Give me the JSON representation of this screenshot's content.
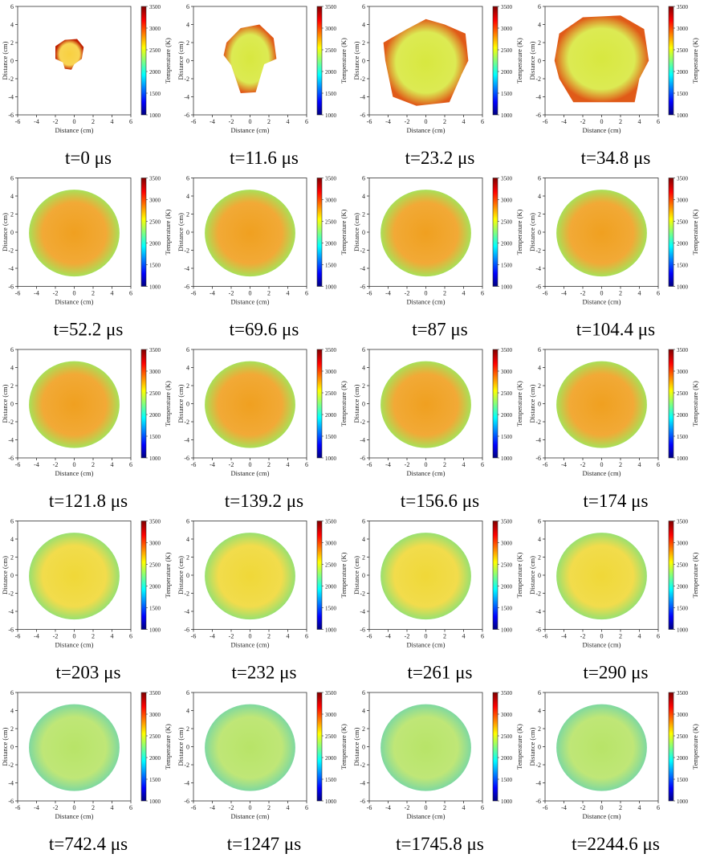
{
  "chart_data": [
    {
      "type": "heatmap",
      "caption": "t=0 μs",
      "xlabel": "Distance (cm)",
      "ylabel": "Distance (cm)",
      "colorbar_label": "Temperature (K)",
      "xlim": [
        -6,
        6
      ],
      "ylim": [
        -6,
        6
      ],
      "xticks": [
        -6,
        -4,
        -2,
        0,
        2,
        4,
        6
      ],
      "yticks": [
        -6,
        -4,
        -2,
        0,
        2,
        4,
        6
      ],
      "clim": [
        1000,
        3500
      ],
      "cticks": [
        1000,
        1500,
        2000,
        2500,
        3000,
        3500
      ]
    },
    {
      "type": "heatmap",
      "caption": "t=11.6 μs",
      "xlabel": "Distance (cm)",
      "ylabel": "Distance (cm)",
      "colorbar_label": "Temperature (K)",
      "xlim": [
        -6,
        6
      ],
      "ylim": [
        -6,
        6
      ],
      "xticks": [
        -6,
        -4,
        -2,
        0,
        2,
        4,
        6
      ],
      "yticks": [
        -6,
        -4,
        -2,
        0,
        2,
        4,
        6
      ],
      "clim": [
        1000,
        3500
      ],
      "cticks": [
        1000,
        1500,
        2000,
        2500,
        3000,
        3500
      ]
    },
    {
      "type": "heatmap",
      "caption": "t=23.2 μs",
      "xlabel": "Distance (cm)",
      "ylabel": "Distance (cm)",
      "colorbar_label": "Temperature (K)",
      "xlim": [
        -6,
        6
      ],
      "ylim": [
        -6,
        6
      ],
      "xticks": [
        -6,
        -4,
        -2,
        0,
        2,
        4,
        6
      ],
      "yticks": [
        -6,
        -4,
        -2,
        0,
        2,
        4,
        6
      ],
      "clim": [
        1000,
        3500
      ],
      "cticks": [
        1000,
        1500,
        2000,
        2500,
        3000,
        3500
      ]
    },
    {
      "type": "heatmap",
      "caption": "t=34.8 μs",
      "xlabel": "Distance (cm)",
      "ylabel": "Distance (cm)",
      "colorbar_label": "Temperature (K)",
      "xlim": [
        -6,
        6
      ],
      "ylim": [
        -6,
        6
      ],
      "xticks": [
        -6,
        -4,
        -2,
        0,
        2,
        4,
        6
      ],
      "yticks": [
        -6,
        -4,
        -2,
        0,
        2,
        4,
        6
      ],
      "clim": [
        1000,
        3500
      ],
      "cticks": [
        1000,
        1500,
        2000,
        2500,
        3000,
        3500
      ]
    },
    {
      "type": "heatmap",
      "caption": "t=52.2 μs",
      "xlabel": "Distance (cm)",
      "ylabel": "Distance (cm)",
      "colorbar_label": "Temperature (K)",
      "xlim": [
        -6,
        6
      ],
      "ylim": [
        -6,
        6
      ],
      "xticks": [
        -6,
        -4,
        -2,
        0,
        2,
        4,
        6
      ],
      "yticks": [
        -6,
        -4,
        -2,
        0,
        2,
        4,
        6
      ],
      "clim": [
        1000,
        3500
      ],
      "cticks": [
        1000,
        1500,
        2000,
        2500,
        3000,
        3500
      ]
    },
    {
      "type": "heatmap",
      "caption": "t=69.6 μs",
      "xlabel": "Distance (cm)",
      "ylabel": "Distance (cm)",
      "colorbar_label": "Temperature (K)",
      "xlim": [
        -6,
        6
      ],
      "ylim": [
        -6,
        6
      ],
      "xticks": [
        -6,
        -4,
        -2,
        0,
        2,
        4,
        6
      ],
      "yticks": [
        -6,
        -4,
        -2,
        0,
        2,
        4,
        6
      ],
      "clim": [
        1000,
        3500
      ],
      "cticks": [
        1000,
        1500,
        2000,
        2500,
        3000,
        3500
      ]
    },
    {
      "type": "heatmap",
      "caption": "t=87 μs",
      "xlabel": "Distance (cm)",
      "ylabel": "Distance (cm)",
      "colorbar_label": "Temperature (K)",
      "xlim": [
        -6,
        6
      ],
      "ylim": [
        -6,
        6
      ],
      "xticks": [
        -6,
        -4,
        -2,
        0,
        2,
        4,
        6
      ],
      "yticks": [
        -6,
        -4,
        -2,
        0,
        2,
        4,
        6
      ],
      "clim": [
        1000,
        3500
      ],
      "cticks": [
        1000,
        1500,
        2000,
        2500,
        3000,
        3500
      ]
    },
    {
      "type": "heatmap",
      "caption": "t=104.4 μs",
      "xlabel": "Distance (cm)",
      "ylabel": "Distance (cm)",
      "colorbar_label": "Temperature (K)",
      "xlim": [
        -6,
        6
      ],
      "ylim": [
        -6,
        6
      ],
      "xticks": [
        -6,
        -4,
        -2,
        0,
        2,
        4,
        6
      ],
      "yticks": [
        -6,
        -4,
        -2,
        0,
        2,
        4,
        6
      ],
      "clim": [
        1000,
        3500
      ],
      "cticks": [
        1000,
        1500,
        2000,
        2500,
        3000,
        3500
      ]
    },
    {
      "type": "heatmap",
      "caption": "t=121.8 μs",
      "xlabel": "Distance (cm)",
      "ylabel": "Distance (cm)",
      "colorbar_label": "Temperature (K)",
      "xlim": [
        -6,
        6
      ],
      "ylim": [
        -6,
        6
      ],
      "xticks": [
        -6,
        -4,
        -2,
        0,
        2,
        4,
        6
      ],
      "yticks": [
        -6,
        -4,
        -2,
        0,
        2,
        4,
        6
      ],
      "clim": [
        1000,
        3500
      ],
      "cticks": [
        1000,
        1500,
        2000,
        2500,
        3000,
        3500
      ]
    },
    {
      "type": "heatmap",
      "caption": "t=139.2 μs",
      "xlabel": "Distance (cm)",
      "ylabel": "Distance (cm)",
      "colorbar_label": "Temperature (K)",
      "xlim": [
        -6,
        6
      ],
      "ylim": [
        -6,
        6
      ],
      "xticks": [
        -6,
        -4,
        -2,
        0,
        2,
        4,
        6
      ],
      "yticks": [
        -6,
        -4,
        -2,
        0,
        2,
        4,
        6
      ],
      "clim": [
        1000,
        3500
      ],
      "cticks": [
        1000,
        1500,
        2000,
        2500,
        3000,
        3500
      ]
    },
    {
      "type": "heatmap",
      "caption": "t=156.6 μs",
      "xlabel": "Distance (cm)",
      "ylabel": "Distance (cm)",
      "colorbar_label": "Temperature (K)",
      "xlim": [
        -6,
        6
      ],
      "ylim": [
        -6,
        6
      ],
      "xticks": [
        -6,
        -4,
        -2,
        0,
        2,
        4,
        6
      ],
      "yticks": [
        -6,
        -4,
        -2,
        0,
        2,
        4,
        6
      ],
      "clim": [
        1000,
        3500
      ],
      "cticks": [
        1000,
        1500,
        2000,
        2500,
        3000,
        3500
      ]
    },
    {
      "type": "heatmap",
      "caption": "t=174 μs",
      "xlabel": "Distance (cm)",
      "ylabel": "Distance (cm)",
      "colorbar_label": "Temperature (K)",
      "xlim": [
        -6,
        6
      ],
      "ylim": [
        -6,
        6
      ],
      "xticks": [
        -6,
        -4,
        -2,
        0,
        2,
        4,
        6
      ],
      "yticks": [
        -6,
        -4,
        -2,
        0,
        2,
        4,
        6
      ],
      "clim": [
        1000,
        3500
      ],
      "cticks": [
        1000,
        1500,
        2000,
        2500,
        3000,
        3500
      ]
    },
    {
      "type": "heatmap",
      "caption": "t=203 μs",
      "xlabel": "Distance (cm)",
      "ylabel": "Distance (cm)",
      "colorbar_label": "Temperature (K)",
      "xlim": [
        -6,
        6
      ],
      "ylim": [
        -6,
        6
      ],
      "xticks": [
        -6,
        -4,
        -2,
        0,
        2,
        4,
        6
      ],
      "yticks": [
        -6,
        -4,
        -2,
        0,
        2,
        4,
        6
      ],
      "clim": [
        1000,
        3500
      ],
      "cticks": [
        1000,
        1500,
        2000,
        2500,
        3000,
        3500
      ]
    },
    {
      "type": "heatmap",
      "caption": "t=232 μs",
      "xlabel": "Distance (cm)",
      "ylabel": "Distance (cm)",
      "colorbar_label": "Temperature (K)",
      "xlim": [
        -6,
        6
      ],
      "ylim": [
        -6,
        6
      ],
      "xticks": [
        -6,
        -4,
        -2,
        0,
        2,
        4,
        6
      ],
      "yticks": [
        -6,
        -4,
        -2,
        0,
        2,
        4,
        6
      ],
      "clim": [
        1000,
        3500
      ],
      "cticks": [
        1000,
        1500,
        2000,
        2500,
        3000,
        3500
      ]
    },
    {
      "type": "heatmap",
      "caption": "t=261 μs",
      "xlabel": "Distance (cm)",
      "ylabel": "Distance (cm)",
      "colorbar_label": "Temperature (K)",
      "xlim": [
        -6,
        6
      ],
      "ylim": [
        -6,
        6
      ],
      "xticks": [
        -6,
        -4,
        -2,
        0,
        2,
        4,
        6
      ],
      "yticks": [
        -6,
        -4,
        -2,
        0,
        2,
        4,
        6
      ],
      "clim": [
        1000,
        3500
      ],
      "cticks": [
        1000,
        1500,
        2000,
        2500,
        3000,
        3500
      ]
    },
    {
      "type": "heatmap",
      "caption": "t=290 μs",
      "xlabel": "Distance (cm)",
      "ylabel": "Distance (cm)",
      "colorbar_label": "Temperature (K)",
      "xlim": [
        -6,
        6
      ],
      "ylim": [
        -6,
        6
      ],
      "xticks": [
        -6,
        -4,
        -2,
        0,
        2,
        4,
        6
      ],
      "yticks": [
        -6,
        -4,
        -2,
        0,
        2,
        4,
        6
      ],
      "clim": [
        1000,
        3500
      ],
      "cticks": [
        1000,
        1500,
        2000,
        2500,
        3000,
        3500
      ]
    },
    {
      "type": "heatmap",
      "caption": "t=742.4 μs",
      "xlabel": "Distance (cm)",
      "ylabel": "Distance (cm)",
      "colorbar_label": "Temperature (K)",
      "xlim": [
        -6,
        6
      ],
      "ylim": [
        -6,
        6
      ],
      "xticks": [
        -6,
        -4,
        -2,
        0,
        2,
        4,
        6
      ],
      "yticks": [
        -6,
        -4,
        -2,
        0,
        2,
        4,
        6
      ],
      "clim": [
        1000,
        3500
      ],
      "cticks": [
        1000,
        1500,
        2000,
        2500,
        3000,
        3500
      ]
    },
    {
      "type": "heatmap",
      "caption": "t=1247 μs",
      "xlabel": "Distance (cm)",
      "ylabel": "Distance (cm)",
      "colorbar_label": "Temperature (K)",
      "xlim": [
        -6,
        6
      ],
      "ylim": [
        -6,
        6
      ],
      "xticks": [
        -6,
        -4,
        -2,
        0,
        2,
        4,
        6
      ],
      "yticks": [
        -6,
        -4,
        -2,
        0,
        2,
        4,
        6
      ],
      "clim": [
        1000,
        3500
      ],
      "cticks": [
        1000,
        1500,
        2000,
        2500,
        3000,
        3500
      ]
    },
    {
      "type": "heatmap",
      "caption": "t=1745.8 μs",
      "xlabel": "Distance (cm)",
      "ylabel": "Distance (cm)",
      "colorbar_label": "Temperature (K)",
      "xlim": [
        -6,
        6
      ],
      "ylim": [
        -6,
        6
      ],
      "xticks": [
        -6,
        -4,
        -2,
        0,
        2,
        4,
        6
      ],
      "yticks": [
        -6,
        -4,
        -2,
        0,
        2,
        4,
        6
      ],
      "clim": [
        1000,
        3500
      ],
      "cticks": [
        1000,
        1500,
        2000,
        2500,
        3000,
        3500
      ]
    },
    {
      "type": "heatmap",
      "caption": "t=2244.6 μs",
      "xlabel": "Distance (cm)",
      "ylabel": "Distance (cm)",
      "colorbar_label": "Temperature (K)",
      "xlim": [
        -6,
        6
      ],
      "ylim": [
        -6,
        6
      ],
      "xticks": [
        -6,
        -4,
        -2,
        0,
        2,
        4,
        6
      ],
      "yticks": [
        -6,
        -4,
        -2,
        0,
        2,
        4,
        6
      ],
      "clim": [
        1000,
        3500
      ],
      "cticks": [
        1000,
        1500,
        2000,
        2500,
        3000,
        3500
      ]
    }
  ]
}
